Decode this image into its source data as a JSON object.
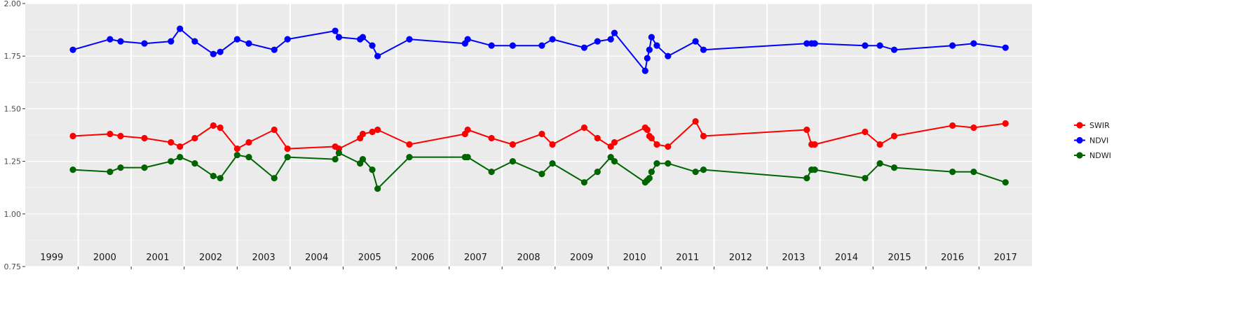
{
  "chart_data": {
    "type": "line",
    "title": "",
    "xlabel": "",
    "ylabel": "",
    "ylim": [
      0.75,
      2.0
    ],
    "y_ticks": [
      "0.75",
      "1.00",
      "1.25",
      "1.50",
      "1.75",
      "2.00"
    ],
    "year_labels": [
      "1999",
      "2000",
      "2001",
      "2002",
      "2003",
      "2004",
      "2005",
      "2006",
      "2007",
      "2008",
      "2009",
      "2010",
      "2011",
      "2012",
      "2013",
      "2014",
      "2015",
      "2016",
      "2017"
    ],
    "grid": true,
    "legend_position": "right",
    "x": [
      1999.4,
      2000.1,
      2000.3,
      2000.75,
      2001.25,
      2001.42,
      2001.7,
      2002.05,
      2002.18,
      2002.5,
      2002.72,
      2003.2,
      2003.45,
      2004.35,
      2004.42,
      2004.82,
      2004.87,
      2005.05,
      2005.15,
      2005.75,
      2006.8,
      2006.85,
      2007.3,
      2007.7,
      2008.25,
      2008.45,
      2009.05,
      2009.3,
      2009.55,
      2009.62,
      2010.2,
      2010.24,
      2010.28,
      2010.32,
      2010.42,
      2010.63,
      2011.15,
      2011.3,
      2013.25,
      2013.34,
      2013.4,
      2014.35,
      2014.63,
      2014.9,
      2016.0,
      2016.4,
      2017.0
    ],
    "series": [
      {
        "name": "SWIR",
        "color": "#ff0000",
        "values": [
          1.37,
          1.38,
          1.37,
          1.36,
          1.34,
          1.32,
          1.36,
          1.42,
          1.41,
          1.31,
          1.34,
          1.4,
          1.31,
          1.32,
          1.31,
          1.36,
          1.38,
          1.39,
          1.4,
          1.33,
          1.38,
          1.4,
          1.36,
          1.33,
          1.38,
          1.33,
          1.41,
          1.36,
          1.32,
          1.34,
          1.41,
          1.4,
          1.37,
          1.36,
          1.33,
          1.32,
          1.44,
          1.37,
          1.4,
          1.33,
          1.33,
          1.39,
          1.33,
          1.37,
          1.42,
          1.41,
          1.43
        ]
      },
      {
        "name": "NDVI",
        "color": "#0000ff",
        "values": [
          1.78,
          1.83,
          1.82,
          1.81,
          1.82,
          1.88,
          1.82,
          1.76,
          1.77,
          1.83,
          1.81,
          1.78,
          1.83,
          1.87,
          1.84,
          1.83,
          1.84,
          1.8,
          1.75,
          1.83,
          1.81,
          1.83,
          1.8,
          1.8,
          1.8,
          1.83,
          1.79,
          1.82,
          1.83,
          1.86,
          1.68,
          1.74,
          1.78,
          1.84,
          1.8,
          1.75,
          1.82,
          1.78,
          1.81,
          1.81,
          1.81,
          1.8,
          1.8,
          1.78,
          1.8,
          1.81,
          1.79
        ]
      },
      {
        "name": "NDWI",
        "color": "#006400",
        "values": [
          1.21,
          1.2,
          1.22,
          1.22,
          1.25,
          1.27,
          1.24,
          1.18,
          1.17,
          1.28,
          1.27,
          1.17,
          1.27,
          1.26,
          1.29,
          1.24,
          1.26,
          1.21,
          1.12,
          1.27,
          1.27,
          1.27,
          1.2,
          1.25,
          1.19,
          1.24,
          1.15,
          1.2,
          1.27,
          1.25,
          1.15,
          1.16,
          1.17,
          1.2,
          1.24,
          1.24,
          1.2,
          1.21,
          1.17,
          1.21,
          1.21,
          1.17,
          1.24,
          1.22,
          1.2,
          1.2,
          1.15
        ]
      }
    ]
  }
}
